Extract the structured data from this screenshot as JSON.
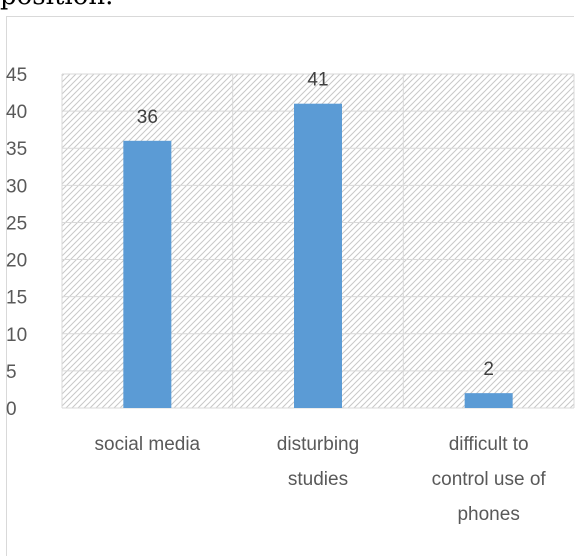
{
  "page": {
    "text_fragment": "position."
  },
  "chart_data": {
    "type": "bar",
    "title": "",
    "xlabel": "",
    "ylabel": "",
    "categories": [
      [
        "social media"
      ],
      [
        "disturbing",
        "studies"
      ],
      [
        "difficult to",
        "control use of",
        "phones"
      ]
    ],
    "values": [
      36,
      41,
      2
    ],
    "data_labels": [
      "36",
      "41",
      "2"
    ],
    "ylim": [
      0,
      45
    ],
    "yticks": [
      0,
      5,
      10,
      15,
      20,
      25,
      30,
      35,
      40,
      45
    ],
    "grid": true,
    "legend": "none",
    "colors": {
      "bar": "#5b9bd5",
      "grid": "#d9d9d9",
      "hatch": "#c8c8c8"
    }
  }
}
